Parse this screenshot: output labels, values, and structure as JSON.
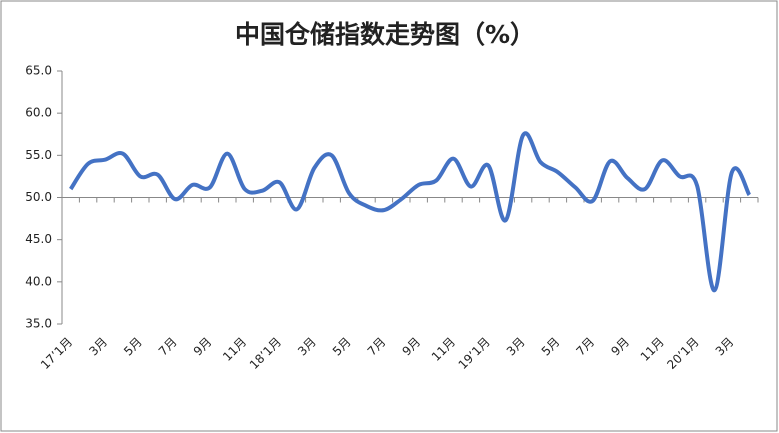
{
  "chart_data": {
    "type": "line",
    "title": "中国仓储指数走势图（%）",
    "categories": [
      "17’1月",
      null,
      "3月",
      null,
      "5月",
      null,
      "7月",
      null,
      "9月",
      null,
      "11月",
      null,
      "18’1月",
      null,
      "3月",
      null,
      "5月",
      null,
      "7月",
      null,
      "9月",
      null,
      "11月",
      null,
      "19’1月",
      null,
      "3月",
      null,
      "5月",
      null,
      "7月",
      null,
      "9月",
      null,
      "11月",
      null,
      "20’1月",
      null,
      "3月",
      null
    ],
    "series": [
      {
        "color": "#4472c4",
        "values": [
          51,
          54,
          54.5,
          55.2,
          52.5,
          52.7,
          49.8,
          51.5,
          51.2,
          55.2,
          51,
          50.8,
          51.8,
          48.6,
          53.5,
          55,
          50.5,
          49,
          48.5,
          49.8,
          51.5,
          52,
          54.6,
          51.3,
          53.8,
          47.3,
          57.4,
          54.2,
          53,
          51.2,
          49.6,
          54.3,
          52.3,
          51,
          54.4,
          52.5,
          51.4,
          39,
          53,
          50.3
        ]
      }
    ],
    "ylim": [
      35,
      65
    ],
    "yticks": [
      {
        "value": 35,
        "label": "35.0"
      },
      {
        "value": 40,
        "label": "40.0"
      },
      {
        "value": 45,
        "label": "45.0"
      },
      {
        "value": 50,
        "label": "50.0"
      },
      {
        "value": 55,
        "label": "55.0"
      },
      {
        "value": 60,
        "label": "60.0"
      },
      {
        "value": 65,
        "label": "65.0"
      }
    ],
    "x_axis_at": 50,
    "smooth": true
  }
}
